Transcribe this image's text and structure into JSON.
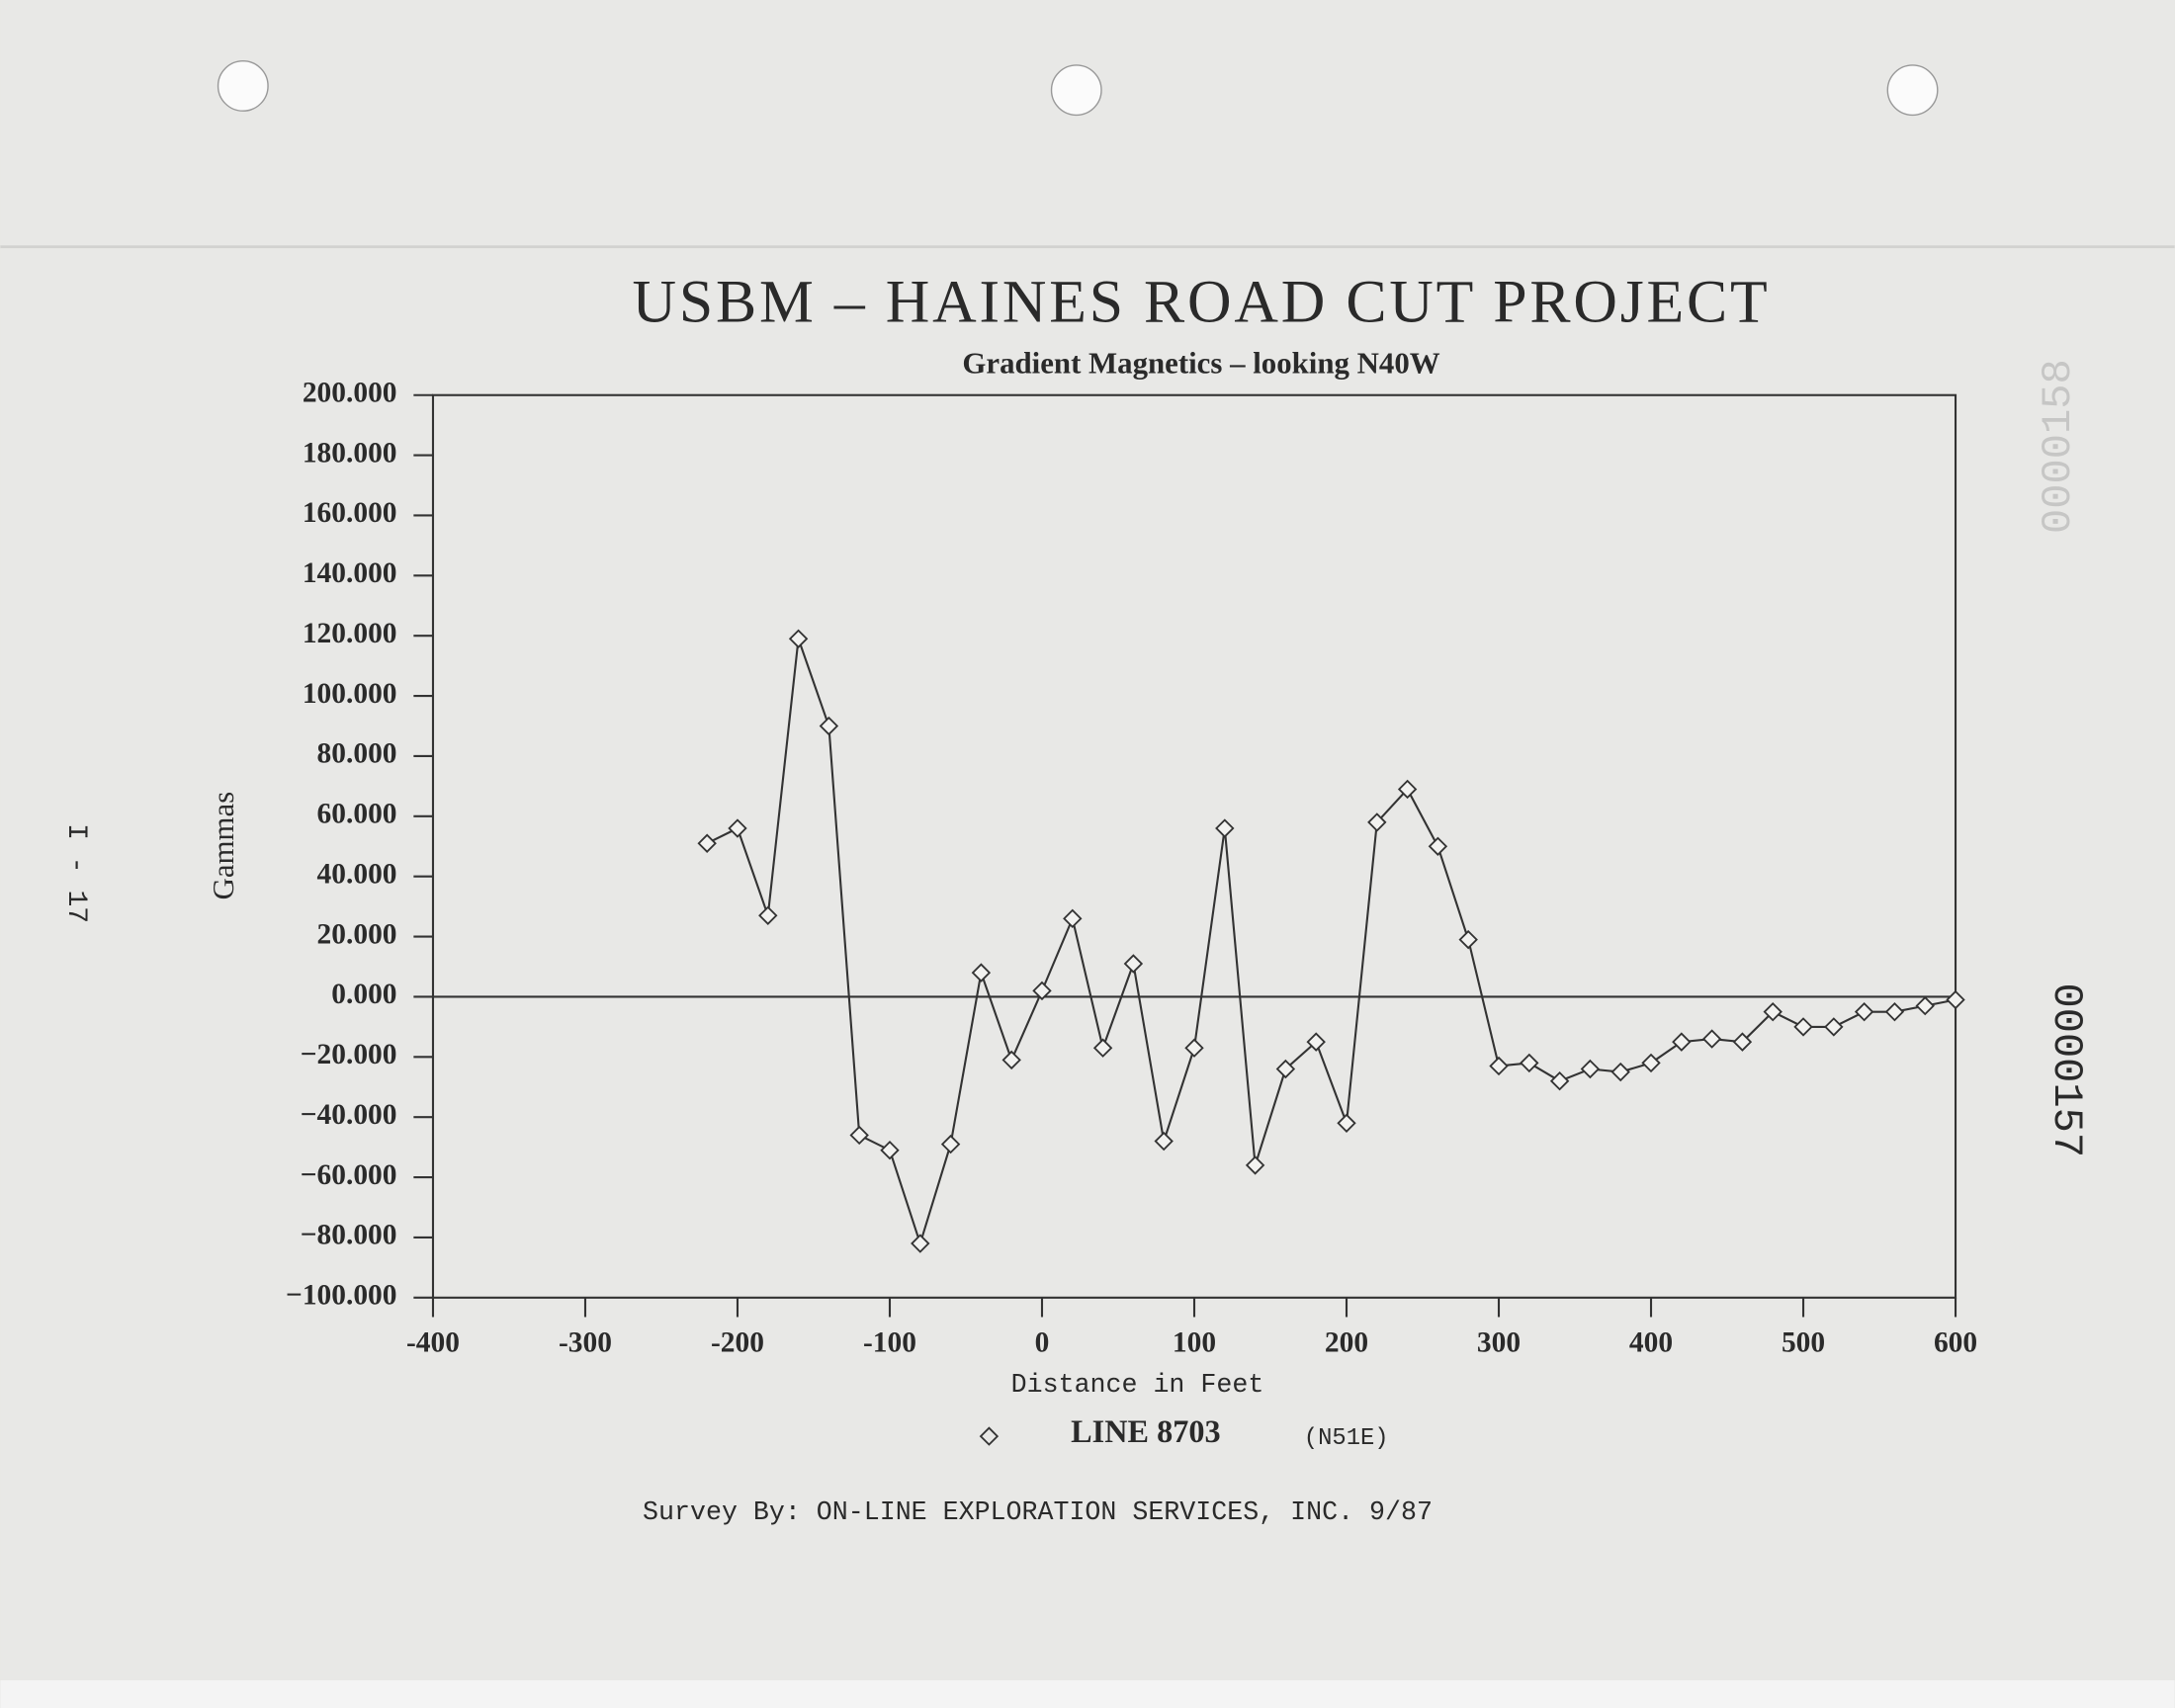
{
  "chart_data": {
    "type": "line",
    "title": "USBM – HAINES ROAD CUT PROJECT",
    "subtitle": "Gradient Magnetics – looking N40W",
    "x_label": "Distance in Feet",
    "y_label": "Gammas",
    "x": [
      -220,
      -200,
      -180,
      -160,
      -140,
      -120,
      -100,
      -80,
      -60,
      -40,
      -20,
      0,
      20,
      40,
      60,
      80,
      100,
      120,
      140,
      160,
      180,
      200,
      220,
      240,
      260,
      280,
      300,
      320,
      340,
      360,
      380,
      400,
      420,
      440,
      460,
      480,
      500,
      520,
      540,
      560,
      580,
      600
    ],
    "series": [
      {
        "name": "LINE 8703",
        "color": "#333333",
        "marker": "diamond",
        "values": [
          51,
          56,
          27,
          119,
          90,
          -46,
          -51,
          -82,
          -49,
          8,
          -21,
          2,
          26,
          -17,
          11,
          -48,
          -17,
          56,
          -56,
          -24,
          -15,
          -42,
          58,
          69,
          50,
          19,
          -23,
          -22,
          -28,
          -24,
          -25,
          -22,
          -15,
          -14,
          -15,
          -5,
          -10,
          -10,
          -5,
          -5,
          -3,
          -1
        ]
      }
    ],
    "legend_note": "(N51E)",
    "xlim": [
      -400,
      600
    ],
    "xticks": [
      -400,
      -300,
      -200,
      -100,
      0,
      100,
      200,
      300,
      400,
      500,
      600
    ],
    "ylim": [
      -100,
      200
    ],
    "yticks": [
      {
        "value": -100,
        "label": "−100.000"
      },
      {
        "value": -80,
        "label": "−80.000"
      },
      {
        "value": -60,
        "label": "−60.000"
      },
      {
        "value": -40,
        "label": "−40.000"
      },
      {
        "value": -20,
        "label": "−20.000"
      },
      {
        "value": 0,
        "label": "0.000"
      },
      {
        "value": 20,
        "label": "20.000"
      },
      {
        "value": 40,
        "label": "40.000"
      },
      {
        "value": 60,
        "label": "60.000"
      },
      {
        "value": 80,
        "label": "80.000"
      },
      {
        "value": 100,
        "label": "100.000"
      },
      {
        "value": 120,
        "label": "120.000"
      },
      {
        "value": 140,
        "label": "140.000"
      },
      {
        "value": 160,
        "label": "160.000"
      },
      {
        "value": 180,
        "label": "180.000"
      },
      {
        "value": 200,
        "label": "200.000"
      }
    ],
    "grid": false,
    "footer": "Survey By:  ON-LINE EXPLORATION SERVICES, INC.  9/87"
  },
  "margin_notes": {
    "left": "I - 17",
    "right": "0000157",
    "top_right": "0000158"
  }
}
